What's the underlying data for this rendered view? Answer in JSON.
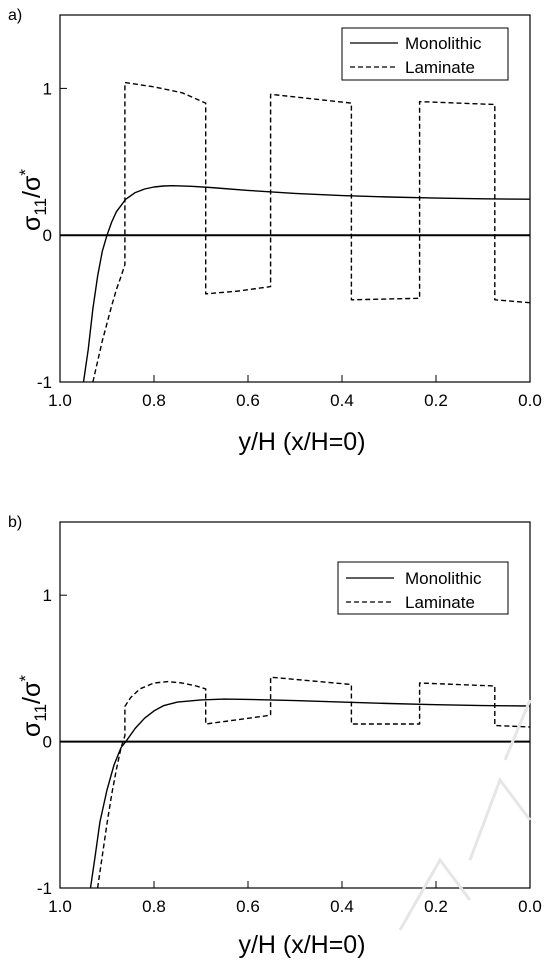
{
  "chart_data": [
    {
      "type": "line",
      "panel_label": "a)",
      "xlabel": "y/H (x/H=0)",
      "ylabel": "σ11/σ*",
      "xlim": [
        1.0,
        0.0
      ],
      "ylim": [
        -1,
        1.5
      ],
      "x_ticks": [
        "1.0",
        "0.8",
        "0.6",
        "0.4",
        "0.2",
        "0.0"
      ],
      "y_ticks": [
        "-1",
        "0",
        "1"
      ],
      "legend_position": "top-right",
      "zero_line": true,
      "series": [
        {
          "name": "Monolithic",
          "style": "solid",
          "x": [
            0.95,
            0.94,
            0.93,
            0.92,
            0.91,
            0.9,
            0.89,
            0.88,
            0.86,
            0.84,
            0.82,
            0.8,
            0.78,
            0.76,
            0.72,
            0.68,
            0.6,
            0.5,
            0.4,
            0.3,
            0.2,
            0.1,
            0.0
          ],
          "y": [
            -1.0,
            -0.78,
            -0.5,
            -0.28,
            -0.11,
            0.0,
            0.09,
            0.16,
            0.245,
            0.29,
            0.315,
            0.328,
            0.335,
            0.337,
            0.333,
            0.325,
            0.305,
            0.285,
            0.27,
            0.26,
            0.253,
            0.248,
            0.245
          ]
        },
        {
          "name": "Laminate",
          "style": "dashed",
          "x": [
            0.93,
            0.92,
            0.91,
            0.9,
            0.89,
            0.88,
            0.87,
            0.862,
            0.862,
            0.8,
            0.74,
            0.69,
            0.69,
            0.62,
            0.552,
            0.552,
            0.38,
            0.38,
            0.235,
            0.235,
            0.075,
            0.075,
            0.0
          ],
          "y": [
            -1.0,
            -0.86,
            -0.72,
            -0.6,
            -0.48,
            -0.37,
            -0.28,
            -0.2,
            1.04,
            1.01,
            0.97,
            0.9,
            -0.4,
            -0.38,
            -0.35,
            0.96,
            0.9,
            -0.44,
            -0.43,
            0.91,
            0.89,
            -0.44,
            -0.46
          ]
        }
      ]
    },
    {
      "type": "line",
      "panel_label": "b)",
      "xlabel": "y/H (x/H=0)",
      "ylabel": "σ11/σ*",
      "xlim": [
        1.0,
        0.0
      ],
      "ylim": [
        -1,
        1.5
      ],
      "x_ticks": [
        "1.0",
        "0.8",
        "0.6",
        "0.4",
        "0.2",
        "0.0"
      ],
      "y_ticks": [
        "-1",
        "0",
        "1"
      ],
      "legend_position": "top-right",
      "zero_line": true,
      "series": [
        {
          "name": "Monolithic",
          "style": "solid",
          "x": [
            0.935,
            0.925,
            0.915,
            0.9,
            0.885,
            0.87,
            0.86,
            0.84,
            0.82,
            0.8,
            0.78,
            0.75,
            0.7,
            0.65,
            0.6,
            0.5,
            0.4,
            0.3,
            0.2,
            0.1,
            0.0
          ],
          "y": [
            -1.0,
            -0.78,
            -0.55,
            -0.33,
            -0.16,
            -0.04,
            0.0,
            0.09,
            0.16,
            0.21,
            0.245,
            0.27,
            0.285,
            0.29,
            0.288,
            0.28,
            0.27,
            0.26,
            0.252,
            0.246,
            0.243
          ]
        },
        {
          "name": "Laminate",
          "style": "dashed",
          "x": [
            0.92,
            0.91,
            0.9,
            0.89,
            0.88,
            0.87,
            0.862,
            0.862,
            0.85,
            0.83,
            0.8,
            0.77,
            0.74,
            0.71,
            0.69,
            0.69,
            0.62,
            0.552,
            0.552,
            0.38,
            0.38,
            0.235,
            0.235,
            0.075,
            0.075,
            0.0
          ],
          "y": [
            -1.0,
            -0.78,
            -0.56,
            -0.36,
            -0.19,
            -0.04,
            0.04,
            0.24,
            0.3,
            0.36,
            0.4,
            0.41,
            0.4,
            0.38,
            0.36,
            0.12,
            0.15,
            0.18,
            0.44,
            0.39,
            0.12,
            0.12,
            0.4,
            0.38,
            0.11,
            0.1
          ]
        }
      ]
    }
  ]
}
